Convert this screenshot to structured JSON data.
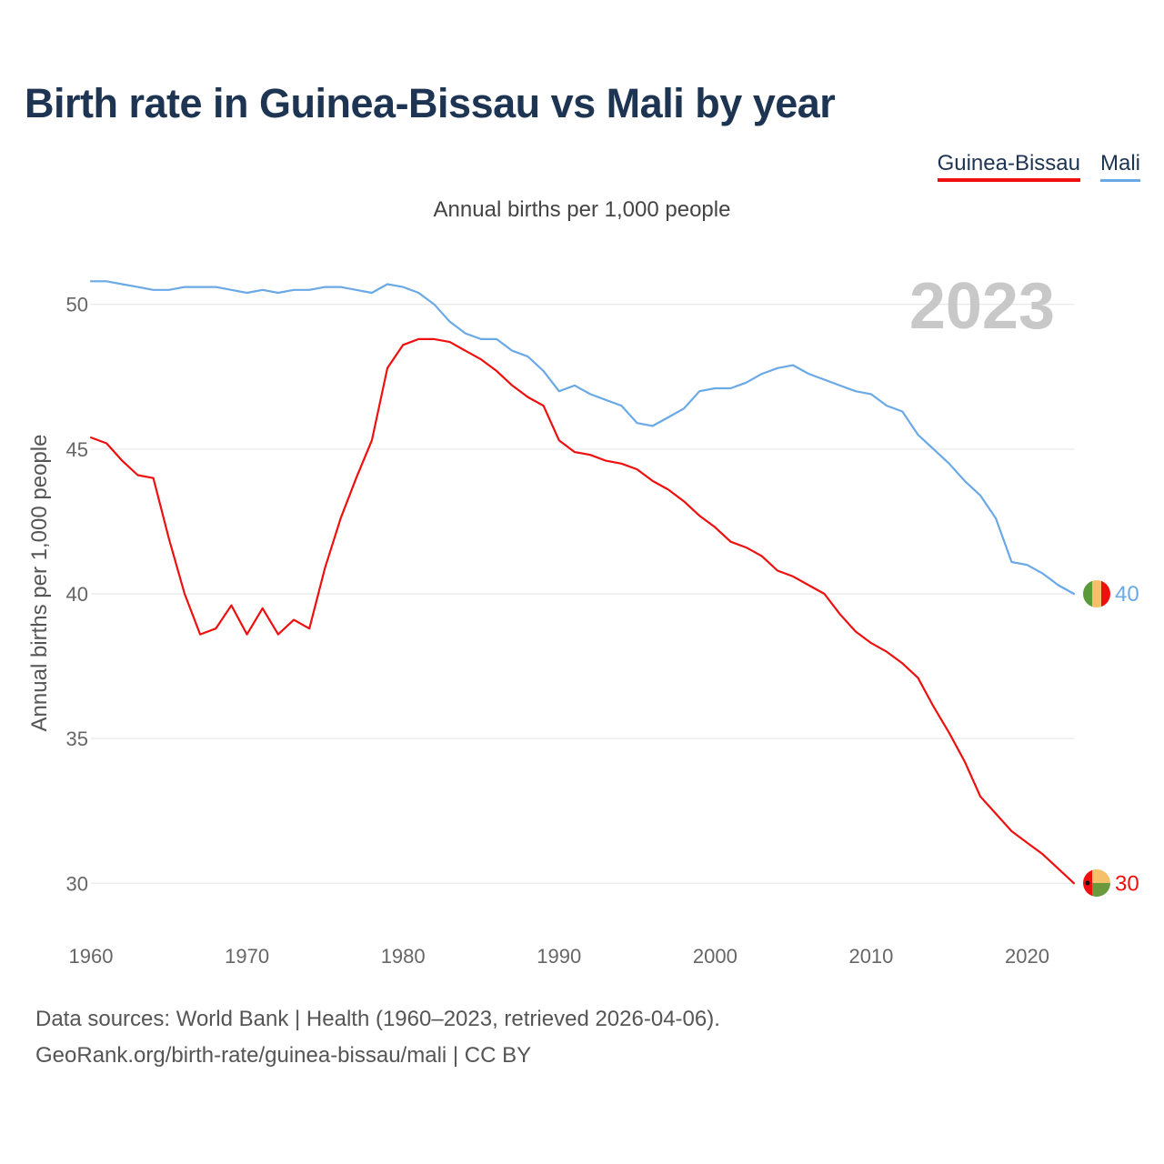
{
  "title": "Birth rate in Guinea-Bissau vs Mali by year",
  "legend": {
    "guinea_bissau": "Guinea-Bissau",
    "mali": "Mali"
  },
  "colors": {
    "guinea_bissau": "#ee0f0f",
    "mali": "#6aa9e6",
    "title": "#1d3452",
    "year_watermark": "#c8c8c8"
  },
  "icons": {
    "guinea_bissau": "guinea-bissau-flag-icon",
    "mali": "mali-flag-icon"
  },
  "source_line1": "Data sources: World Bank | Health (1960–2023, retrieved 2026-04-06).",
  "source_line2": "GeoRank.org/birth-rate/guinea-bissau/mali | CC BY",
  "chart_data": {
    "type": "line",
    "title": "Annual births per 1,000 people",
    "ylabel": "Annual births per 1,000 people",
    "xlabel": "",
    "year_watermark": "2023",
    "xlim": [
      1960,
      2023
    ],
    "ylim": [
      28.5,
      51.5
    ],
    "x_ticks": [
      1960,
      1970,
      1980,
      1990,
      2000,
      2010,
      2020
    ],
    "y_ticks": [
      30,
      35,
      40,
      45,
      50
    ],
    "grid": true,
    "x": [
      1960,
      1961,
      1962,
      1963,
      1964,
      1965,
      1966,
      1967,
      1968,
      1969,
      1970,
      1971,
      1972,
      1973,
      1974,
      1975,
      1976,
      1977,
      1978,
      1979,
      1980,
      1981,
      1982,
      1983,
      1984,
      1985,
      1986,
      1987,
      1988,
      1989,
      1990,
      1991,
      1992,
      1993,
      1994,
      1995,
      1996,
      1997,
      1998,
      1999,
      2000,
      2001,
      2002,
      2003,
      2004,
      2005,
      2006,
      2007,
      2008,
      2009,
      2010,
      2011,
      2012,
      2013,
      2014,
      2015,
      2016,
      2017,
      2018,
      2019,
      2020,
      2021,
      2022,
      2023
    ],
    "series": [
      {
        "name": "Mali",
        "end_label": "40",
        "values": [
          50.8,
          50.8,
          50.7,
          50.6,
          50.5,
          50.5,
          50.6,
          50.6,
          50.6,
          50.5,
          50.4,
          50.5,
          50.4,
          50.5,
          50.5,
          50.6,
          50.6,
          50.5,
          50.4,
          50.7,
          50.6,
          50.4,
          50.0,
          49.4,
          49.0,
          48.8,
          48.8,
          48.4,
          48.2,
          47.7,
          47.0,
          47.2,
          46.9,
          46.7,
          46.5,
          45.9,
          45.8,
          46.1,
          46.4,
          47.0,
          47.1,
          47.1,
          47.3,
          47.6,
          47.8,
          47.9,
          47.6,
          47.4,
          47.2,
          47.0,
          46.9,
          46.5,
          46.3,
          45.5,
          45.0,
          44.5,
          43.9,
          43.4,
          42.6,
          41.1,
          41.0,
          40.7,
          40.3,
          40.0
        ]
      },
      {
        "name": "Guinea-Bissau",
        "end_label": "30",
        "values": [
          45.4,
          45.2,
          44.6,
          44.1,
          44.0,
          41.9,
          40.0,
          38.6,
          38.8,
          39.6,
          38.6,
          39.5,
          38.6,
          39.1,
          38.8,
          40.9,
          42.6,
          44.0,
          45.3,
          47.8,
          48.6,
          48.8,
          48.8,
          48.7,
          48.4,
          48.1,
          47.7,
          47.2,
          46.8,
          46.5,
          45.3,
          44.9,
          44.8,
          44.6,
          44.5,
          44.3,
          43.9,
          43.6,
          43.2,
          42.7,
          42.3,
          41.8,
          41.6,
          41.3,
          40.8,
          40.6,
          40.3,
          40.0,
          39.3,
          38.7,
          38.3,
          38.0,
          37.6,
          37.1,
          36.1,
          35.2,
          34.2,
          33.0,
          32.4,
          31.8,
          31.4,
          31.0,
          30.5,
          30.0
        ]
      }
    ]
  }
}
